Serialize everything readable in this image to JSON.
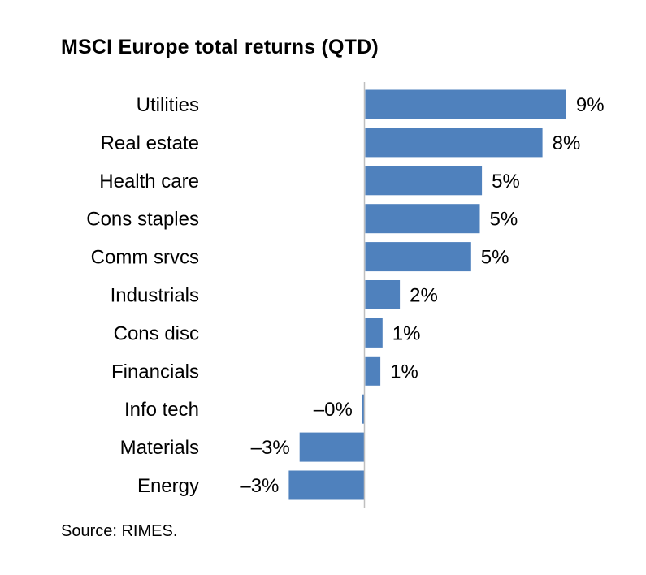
{
  "chart_data": {
    "type": "bar",
    "orientation": "horizontal",
    "title": "MSCI Europe total returns (QTD)",
    "categories": [
      "Utilities",
      "Real estate",
      "Health care",
      "Cons staples",
      "Comm srvcs",
      "Industrials",
      "Cons disc",
      "Financials",
      "Info tech",
      "Materials",
      "Energy"
    ],
    "values": [
      9.3,
      8.2,
      5.4,
      5.3,
      4.9,
      1.6,
      0.8,
      0.7,
      -0.1,
      -3.0,
      -3.5
    ],
    "data_labels": [
      "9%",
      "8%",
      "5%",
      "5%",
      "5%",
      "2%",
      "1%",
      "1%",
      "–0%",
      "–3%",
      "–3%"
    ],
    "unit": "%",
    "bar_color": "#4F81BD",
    "axis_color": "#BFBFBF",
    "grid": false,
    "legend": "none",
    "source": "Source: RIMES."
  }
}
